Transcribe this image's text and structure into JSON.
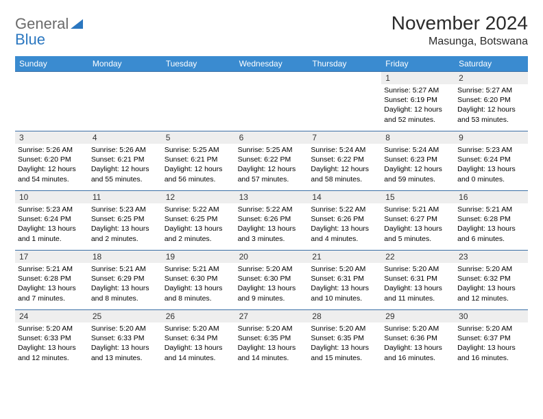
{
  "logo": {
    "text1": "General",
    "text2": "Blue"
  },
  "title": "November 2024",
  "location": "Masunga, Botswana",
  "colors": {
    "header_bg": "#3a8bd0",
    "header_text": "#ffffff",
    "daynum_bg": "#eeeeee",
    "week_border": "#3a6fa5",
    "logo_gray": "#6a6a6a",
    "logo_blue": "#2b77c0"
  },
  "day_labels": [
    "Sunday",
    "Monday",
    "Tuesday",
    "Wednesday",
    "Thursday",
    "Friday",
    "Saturday"
  ],
  "weeks": [
    [
      {
        "blank": true
      },
      {
        "blank": true
      },
      {
        "blank": true
      },
      {
        "blank": true
      },
      {
        "blank": true
      },
      {
        "day": "1",
        "sunrise": "Sunrise: 5:27 AM",
        "sunset": "Sunset: 6:19 PM",
        "daylight1": "Daylight: 12 hours",
        "daylight2": "and 52 minutes."
      },
      {
        "day": "2",
        "sunrise": "Sunrise: 5:27 AM",
        "sunset": "Sunset: 6:20 PM",
        "daylight1": "Daylight: 12 hours",
        "daylight2": "and 53 minutes."
      }
    ],
    [
      {
        "day": "3",
        "sunrise": "Sunrise: 5:26 AM",
        "sunset": "Sunset: 6:20 PM",
        "daylight1": "Daylight: 12 hours",
        "daylight2": "and 54 minutes."
      },
      {
        "day": "4",
        "sunrise": "Sunrise: 5:26 AM",
        "sunset": "Sunset: 6:21 PM",
        "daylight1": "Daylight: 12 hours",
        "daylight2": "and 55 minutes."
      },
      {
        "day": "5",
        "sunrise": "Sunrise: 5:25 AM",
        "sunset": "Sunset: 6:21 PM",
        "daylight1": "Daylight: 12 hours",
        "daylight2": "and 56 minutes."
      },
      {
        "day": "6",
        "sunrise": "Sunrise: 5:25 AM",
        "sunset": "Sunset: 6:22 PM",
        "daylight1": "Daylight: 12 hours",
        "daylight2": "and 57 minutes."
      },
      {
        "day": "7",
        "sunrise": "Sunrise: 5:24 AM",
        "sunset": "Sunset: 6:22 PM",
        "daylight1": "Daylight: 12 hours",
        "daylight2": "and 58 minutes."
      },
      {
        "day": "8",
        "sunrise": "Sunrise: 5:24 AM",
        "sunset": "Sunset: 6:23 PM",
        "daylight1": "Daylight: 12 hours",
        "daylight2": "and 59 minutes."
      },
      {
        "day": "9",
        "sunrise": "Sunrise: 5:23 AM",
        "sunset": "Sunset: 6:24 PM",
        "daylight1": "Daylight: 13 hours",
        "daylight2": "and 0 minutes."
      }
    ],
    [
      {
        "day": "10",
        "sunrise": "Sunrise: 5:23 AM",
        "sunset": "Sunset: 6:24 PM",
        "daylight1": "Daylight: 13 hours",
        "daylight2": "and 1 minute."
      },
      {
        "day": "11",
        "sunrise": "Sunrise: 5:23 AM",
        "sunset": "Sunset: 6:25 PM",
        "daylight1": "Daylight: 13 hours",
        "daylight2": "and 2 minutes."
      },
      {
        "day": "12",
        "sunrise": "Sunrise: 5:22 AM",
        "sunset": "Sunset: 6:25 PM",
        "daylight1": "Daylight: 13 hours",
        "daylight2": "and 2 minutes."
      },
      {
        "day": "13",
        "sunrise": "Sunrise: 5:22 AM",
        "sunset": "Sunset: 6:26 PM",
        "daylight1": "Daylight: 13 hours",
        "daylight2": "and 3 minutes."
      },
      {
        "day": "14",
        "sunrise": "Sunrise: 5:22 AM",
        "sunset": "Sunset: 6:26 PM",
        "daylight1": "Daylight: 13 hours",
        "daylight2": "and 4 minutes."
      },
      {
        "day": "15",
        "sunrise": "Sunrise: 5:21 AM",
        "sunset": "Sunset: 6:27 PM",
        "daylight1": "Daylight: 13 hours",
        "daylight2": "and 5 minutes."
      },
      {
        "day": "16",
        "sunrise": "Sunrise: 5:21 AM",
        "sunset": "Sunset: 6:28 PM",
        "daylight1": "Daylight: 13 hours",
        "daylight2": "and 6 minutes."
      }
    ],
    [
      {
        "day": "17",
        "sunrise": "Sunrise: 5:21 AM",
        "sunset": "Sunset: 6:28 PM",
        "daylight1": "Daylight: 13 hours",
        "daylight2": "and 7 minutes."
      },
      {
        "day": "18",
        "sunrise": "Sunrise: 5:21 AM",
        "sunset": "Sunset: 6:29 PM",
        "daylight1": "Daylight: 13 hours",
        "daylight2": "and 8 minutes."
      },
      {
        "day": "19",
        "sunrise": "Sunrise: 5:21 AM",
        "sunset": "Sunset: 6:30 PM",
        "daylight1": "Daylight: 13 hours",
        "daylight2": "and 8 minutes."
      },
      {
        "day": "20",
        "sunrise": "Sunrise: 5:20 AM",
        "sunset": "Sunset: 6:30 PM",
        "daylight1": "Daylight: 13 hours",
        "daylight2": "and 9 minutes."
      },
      {
        "day": "21",
        "sunrise": "Sunrise: 5:20 AM",
        "sunset": "Sunset: 6:31 PM",
        "daylight1": "Daylight: 13 hours",
        "daylight2": "and 10 minutes."
      },
      {
        "day": "22",
        "sunrise": "Sunrise: 5:20 AM",
        "sunset": "Sunset: 6:31 PM",
        "daylight1": "Daylight: 13 hours",
        "daylight2": "and 11 minutes."
      },
      {
        "day": "23",
        "sunrise": "Sunrise: 5:20 AM",
        "sunset": "Sunset: 6:32 PM",
        "daylight1": "Daylight: 13 hours",
        "daylight2": "and 12 minutes."
      }
    ],
    [
      {
        "day": "24",
        "sunrise": "Sunrise: 5:20 AM",
        "sunset": "Sunset: 6:33 PM",
        "daylight1": "Daylight: 13 hours",
        "daylight2": "and 12 minutes."
      },
      {
        "day": "25",
        "sunrise": "Sunrise: 5:20 AM",
        "sunset": "Sunset: 6:33 PM",
        "daylight1": "Daylight: 13 hours",
        "daylight2": "and 13 minutes."
      },
      {
        "day": "26",
        "sunrise": "Sunrise: 5:20 AM",
        "sunset": "Sunset: 6:34 PM",
        "daylight1": "Daylight: 13 hours",
        "daylight2": "and 14 minutes."
      },
      {
        "day": "27",
        "sunrise": "Sunrise: 5:20 AM",
        "sunset": "Sunset: 6:35 PM",
        "daylight1": "Daylight: 13 hours",
        "daylight2": "and 14 minutes."
      },
      {
        "day": "28",
        "sunrise": "Sunrise: 5:20 AM",
        "sunset": "Sunset: 6:35 PM",
        "daylight1": "Daylight: 13 hours",
        "daylight2": "and 15 minutes."
      },
      {
        "day": "29",
        "sunrise": "Sunrise: 5:20 AM",
        "sunset": "Sunset: 6:36 PM",
        "daylight1": "Daylight: 13 hours",
        "daylight2": "and 16 minutes."
      },
      {
        "day": "30",
        "sunrise": "Sunrise: 5:20 AM",
        "sunset": "Sunset: 6:37 PM",
        "daylight1": "Daylight: 13 hours",
        "daylight2": "and 16 minutes."
      }
    ]
  ]
}
